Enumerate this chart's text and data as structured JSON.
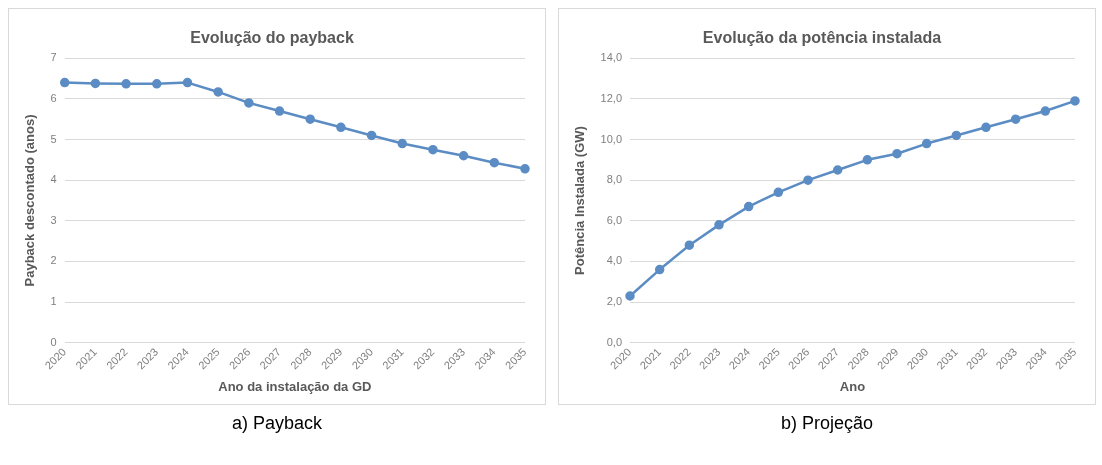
{
  "chart_data": [
    {
      "type": "line",
      "title": "Evolução do payback",
      "xlabel": "Ano da instalação da GD",
      "ylabel": "Payback descontado (anos)",
      "categories": [
        "2020",
        "2021",
        "2022",
        "2023",
        "2024",
        "2025",
        "2026",
        "2027",
        "2028",
        "2029",
        "2030",
        "2031",
        "2032",
        "2033",
        "2034",
        "2035"
      ],
      "series": [
        {
          "color": "#5b8cc4",
          "values": [
            6.4,
            6.38,
            6.37,
            6.37,
            6.4,
            6.17,
            5.9,
            5.7,
            5.5,
            5.3,
            5.1,
            4.9,
            4.75,
            4.6,
            4.43,
            4.28
          ]
        }
      ],
      "ylim": [
        0,
        7
      ],
      "yticks": [
        0,
        1,
        2,
        3,
        4,
        5,
        6,
        7
      ],
      "grid": "y",
      "legend": false,
      "marker": "circle",
      "line_style": "solid",
      "annotations": [
        "a) Payback"
      ]
    },
    {
      "type": "line",
      "title": "Evolução da potência instalada",
      "xlabel": "Ano",
      "ylabel": "Potência Instalada (GW)",
      "categories": [
        "2020",
        "2021",
        "2022",
        "2023",
        "2024",
        "2025",
        "2026",
        "2027",
        "2028",
        "2029",
        "2030",
        "2031",
        "2032",
        "2033",
        "2034",
        "2035"
      ],
      "series": [
        {
          "color": "#5b8cc4",
          "values": [
            2.3,
            3.6,
            4.8,
            5.8,
            6.7,
            7.4,
            8.0,
            8.5,
            9.0,
            9.3,
            9.8,
            10.2,
            10.6,
            11.0,
            11.4,
            11.9
          ]
        }
      ],
      "ylim": [
        0,
        14
      ],
      "yticks": [
        {
          "value": 0,
          "label": "0,0"
        },
        {
          "value": 2,
          "label": "2,0"
        },
        {
          "value": 4,
          "label": "4,0"
        },
        {
          "value": 6,
          "label": "6,0"
        },
        {
          "value": 8,
          "label": "8,0"
        },
        {
          "value": 10,
          "label": "10,0"
        },
        {
          "value": 12,
          "label": "12,0"
        },
        {
          "value": 14,
          "label": "14,0"
        }
      ],
      "grid": "y",
      "legend": false,
      "marker": "circle",
      "line_style": "solid",
      "annotations": [
        "b) Projeção"
      ]
    }
  ]
}
